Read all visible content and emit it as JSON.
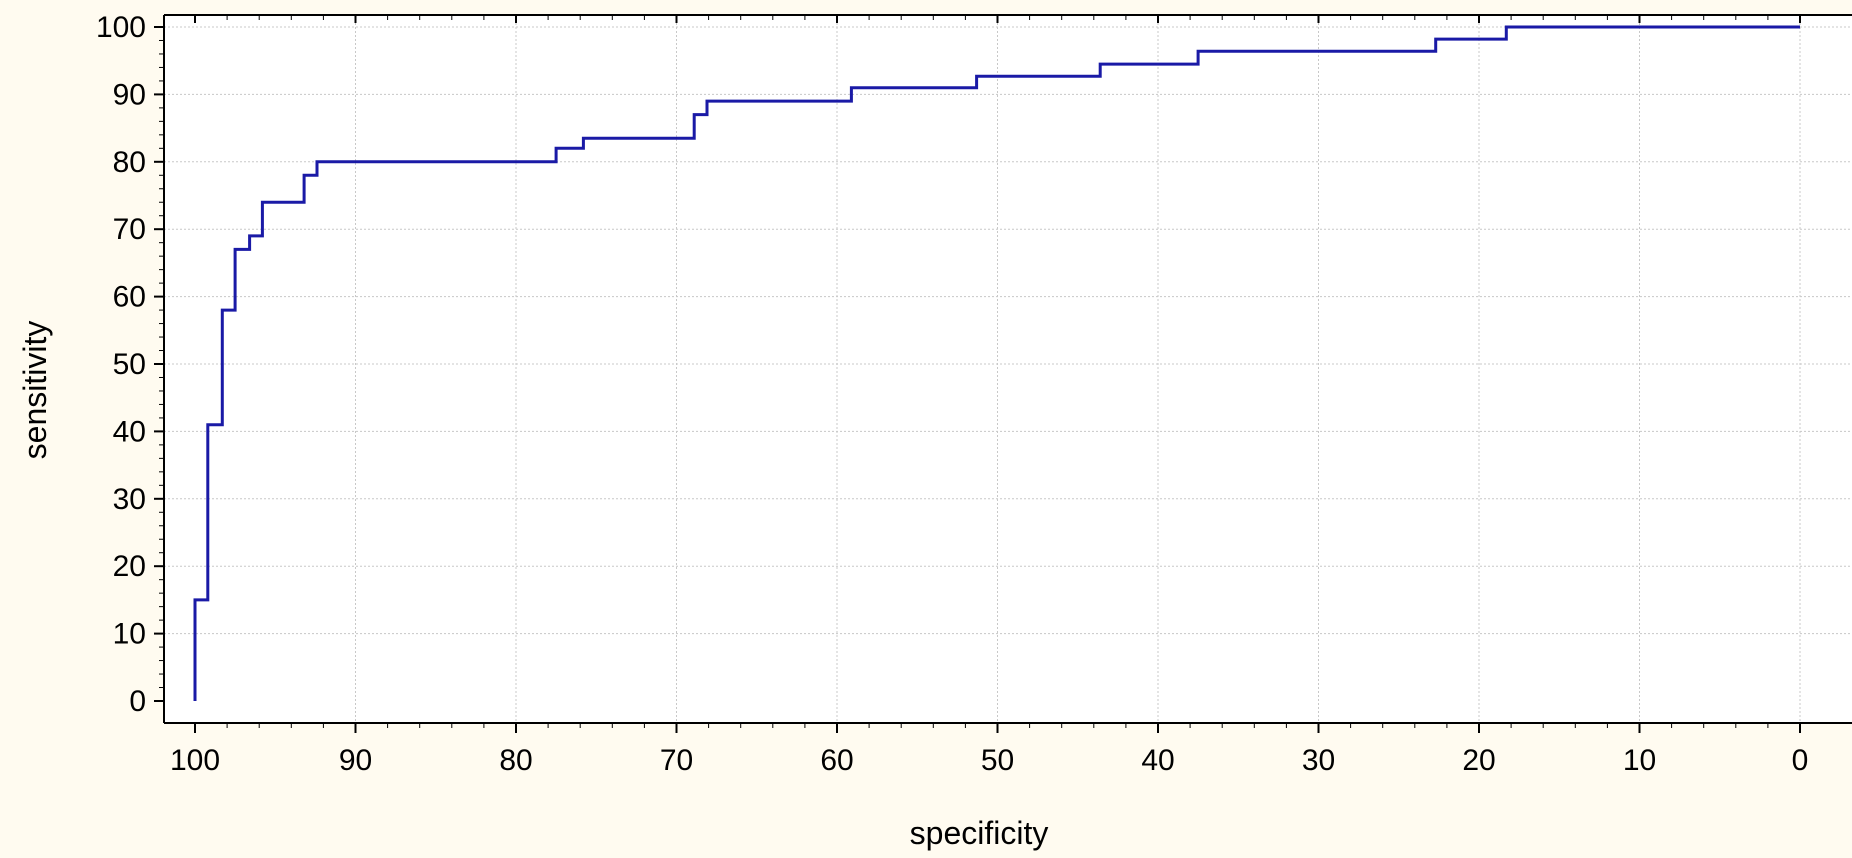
{
  "chart_data": {
    "type": "line",
    "title": "",
    "xlabel": "specificity",
    "ylabel": "sensitivity",
    "xlim": [
      100,
      0
    ],
    "ylim": [
      0,
      100
    ],
    "x_reversed": true,
    "xticks": [
      100,
      90,
      80,
      70,
      60,
      50,
      40,
      30,
      20,
      10,
      0
    ],
    "yticks": [
      0,
      10,
      20,
      30,
      40,
      50,
      60,
      70,
      80,
      90,
      100
    ],
    "grid": true,
    "line_style": "step",
    "colors": {
      "line": "#1a1aa6",
      "background": "#fffbf0",
      "plot_background": "#ffffff",
      "grid": "#c8c8c8",
      "axes": "#000000"
    },
    "series": [
      {
        "x": [
          100,
          100,
          99.2,
          99.2,
          98.3,
          98.3,
          97.5,
          97.5,
          96.6,
          96.6,
          95.8,
          95.8,
          93.2,
          93.2,
          92.4,
          92.4,
          77.5,
          77.5,
          75.8,
          75.8,
          68.9,
          68.9,
          68.1,
          68.1,
          59.1,
          59.1,
          51.3,
          51.3,
          43.6,
          43.6,
          37.5,
          37.5,
          22.7,
          22.7,
          18.3,
          18.3,
          0
        ],
        "y": [
          0,
          15,
          15,
          41,
          41,
          58,
          58,
          67,
          67,
          69,
          69,
          74,
          74,
          78,
          78,
          80,
          80,
          82,
          82,
          83.5,
          83.5,
          87,
          87,
          89,
          89,
          91,
          91,
          92.7,
          92.7,
          94.5,
          94.5,
          96.4,
          96.4,
          98.2,
          98.2,
          100,
          100
        ]
      }
    ]
  }
}
